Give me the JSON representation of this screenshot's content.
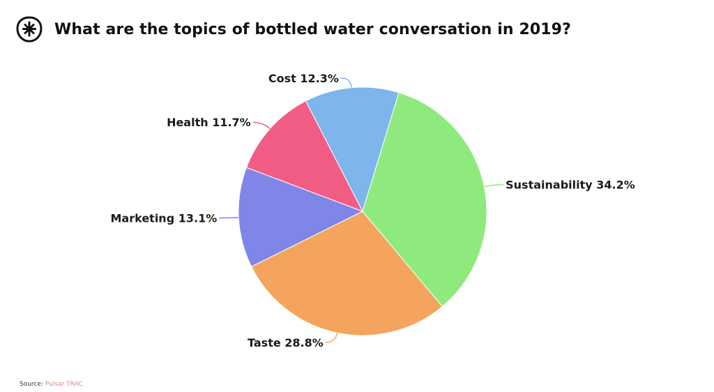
{
  "header": {
    "title": "What are the topics of bottled water conversation in 2019?",
    "logo_icon": "pulsar-asterisk-logo"
  },
  "chart_data": {
    "type": "pie",
    "title": "What are the topics of bottled water conversation in 2019?",
    "start_angle_deg": 140,
    "direction": "clockwise",
    "slices": [
      {
        "label": "Taste",
        "value": 28.8,
        "label_text": "Taste 28.8%",
        "color": "#F5A45D"
      },
      {
        "label": "Marketing",
        "value": 13.1,
        "label_text": "Marketing 13.1%",
        "color": "#8086E8"
      },
      {
        "label": "Health",
        "value": 11.7,
        "label_text": "Health 11.7%",
        "color": "#F25D85"
      },
      {
        "label": "Cost",
        "value": 12.3,
        "label_text": "Cost 12.3%",
        "color": "#7EB5EC"
      },
      {
        "label": "Sustainability",
        "value": 34.2,
        "label_text": "Sustainability 34.2%",
        "color": "#8FEA7D"
      }
    ]
  },
  "footer": {
    "source_prefix": "Source: ",
    "source_name": "Pulsar TRAC"
  }
}
